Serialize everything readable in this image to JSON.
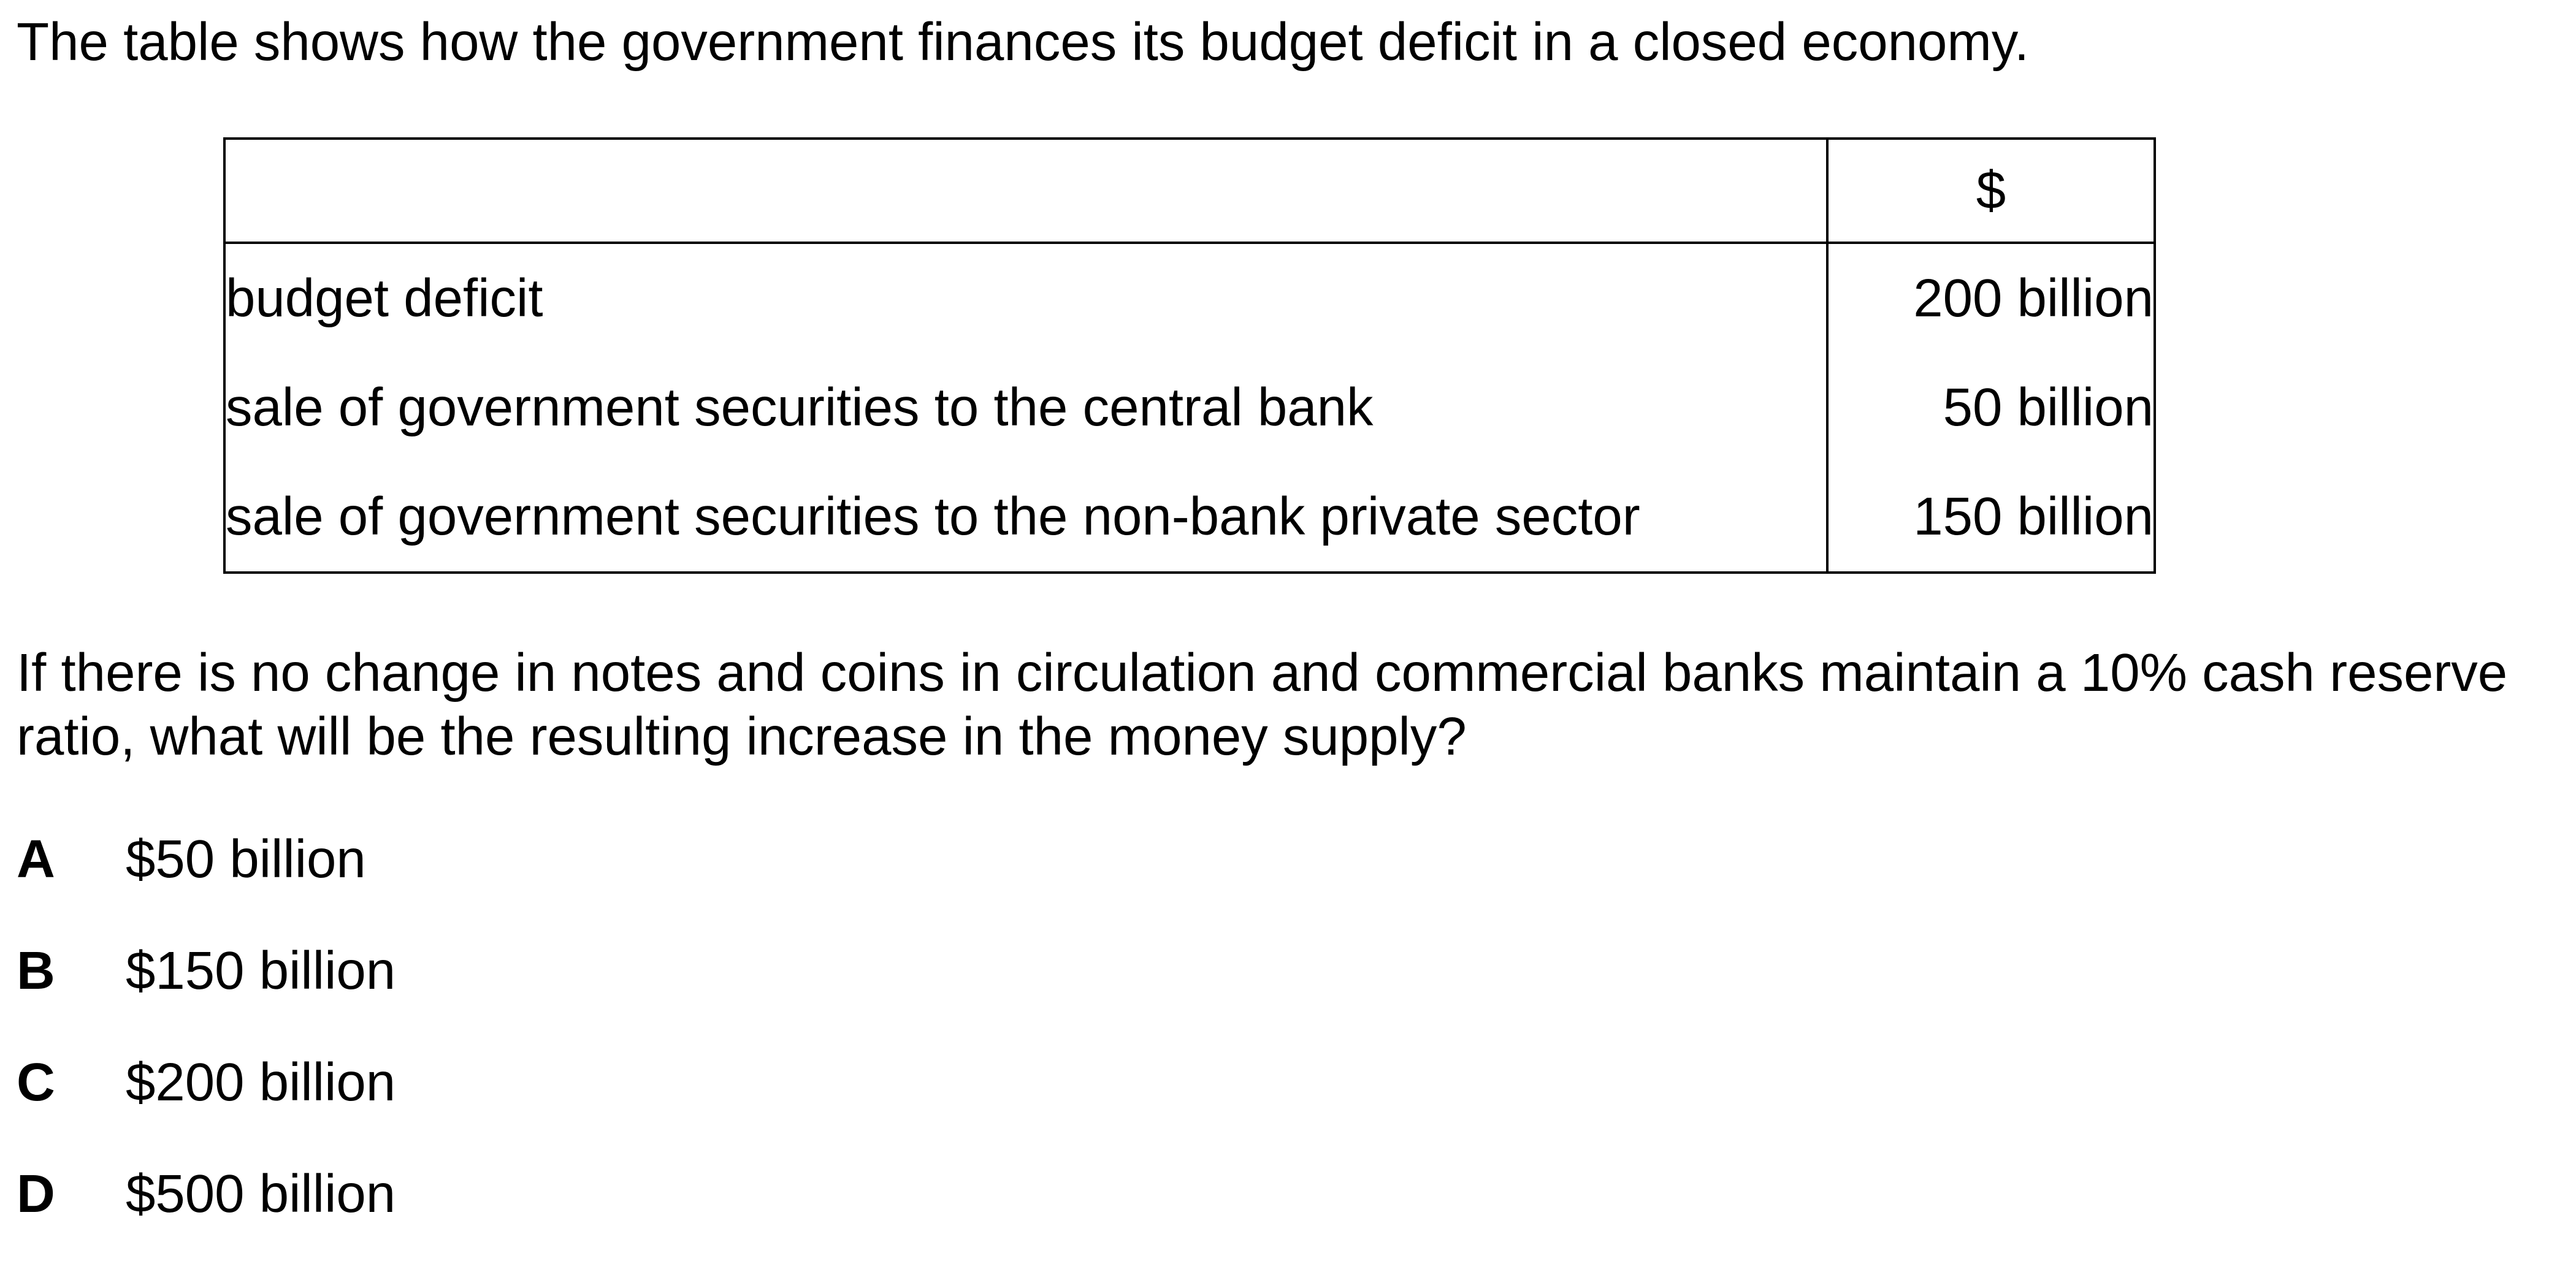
{
  "intro": "The table shows how the government finances its budget deficit in a closed economy.",
  "table": {
    "header": [
      "",
      "$"
    ],
    "rows": [
      {
        "label": "budget deficit",
        "value": "200 billion"
      },
      {
        "label": "sale of government securities to the central bank",
        "value": "50 billion"
      },
      {
        "label": "sale of government securities to the non-bank private sector",
        "value": "150 billion"
      }
    ]
  },
  "question": "If there is no change in notes and coins in circulation and commercial banks maintain a 10% cash reserve ratio, what will be the resulting increase in the money supply?",
  "options": [
    {
      "letter": "A",
      "text": "$50 billion"
    },
    {
      "letter": "B",
      "text": "$150 billion"
    },
    {
      "letter": "C",
      "text": "$200 billion"
    },
    {
      "letter": "D",
      "text": "$500 billion"
    }
  ]
}
